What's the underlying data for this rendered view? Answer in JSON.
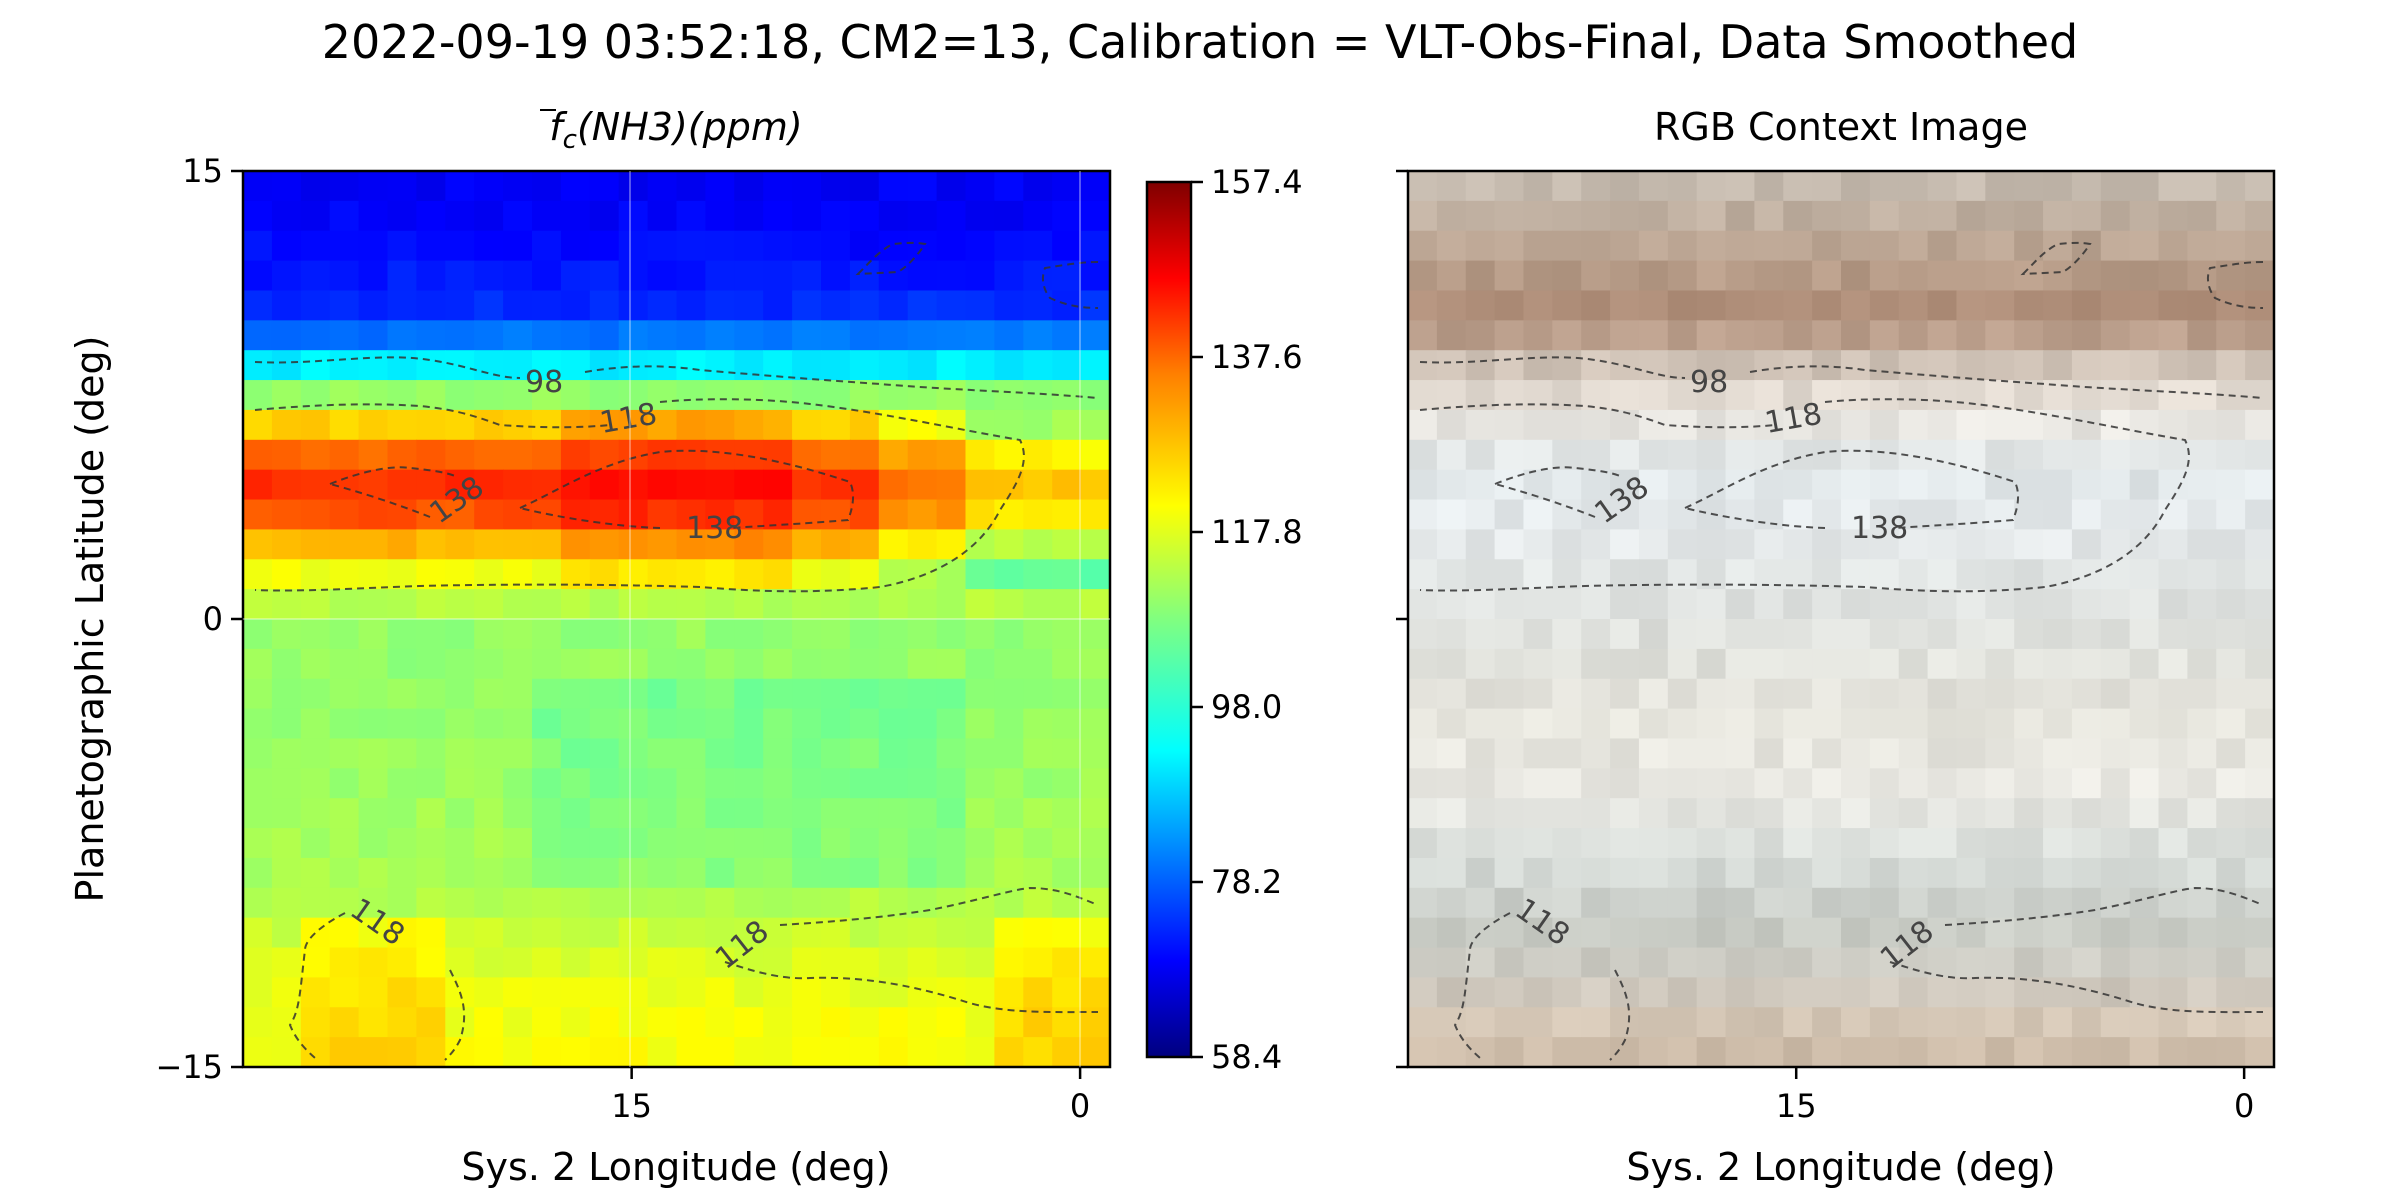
{
  "figure": {
    "title": "2022-09-19 03:52:18, CM2=13, Calibration = VLT-Obs-Final, Data Smoothed"
  },
  "chart_data": [
    {
      "type": "heatmap",
      "title_parts": {
        "f": "f",
        "sub": "c",
        "species": "(NH3)",
        "unit": "(ppm)"
      },
      "xlabel": "Sys. 2 Longitude (deg)",
      "ylabel": "Planetographic Latitude (deg)",
      "xlim": [
        28,
        -1
      ],
      "ylim": [
        -15,
        15
      ],
      "xticks": [
        15,
        0
      ],
      "xtick_labels": [
        "15",
        "0"
      ],
      "yticks": [
        15,
        0,
        -15
      ],
      "ytick_labels": [
        "15",
        "0",
        "−15"
      ],
      "grid": true,
      "colormap": "jet",
      "colorbar": {
        "min": 58.4,
        "max": 157.4,
        "ticks": [
          157.4,
          137.6,
          117.8,
          98.0,
          78.2,
          58.4
        ],
        "tick_labels": [
          "157.4",
          "137.6",
          "117.8",
          "98.0",
          "78.2",
          "58.4"
        ],
        "colors": [
          "#00007f",
          "#0000ff",
          "#0080ff",
          "#00ffff",
          "#80ff80",
          "#ffff00",
          "#ff8000",
          "#ff0000",
          "#7f0000"
        ]
      },
      "latitude_band_values": [
        {
          "lat": 14,
          "value": 70
        },
        {
          "lat": 12,
          "value": 72
        },
        {
          "lat": 10,
          "value": 76
        },
        {
          "lat": 9,
          "value": 88
        },
        {
          "lat": 8,
          "value": 100
        },
        {
          "lat": 7,
          "value": 120
        },
        {
          "lat": 6,
          "value": 130
        },
        {
          "lat": 5,
          "value": 140
        },
        {
          "lat": 4,
          "value": 141
        },
        {
          "lat": 3,
          "value": 133
        },
        {
          "lat": 2,
          "value": 122
        },
        {
          "lat": 1,
          "value": 116
        },
        {
          "lat": 0,
          "value": 110
        },
        {
          "lat": -3,
          "value": 110
        },
        {
          "lat": -6,
          "value": 111
        },
        {
          "lat": -9,
          "value": 112
        },
        {
          "lat": -11,
          "value": 116
        },
        {
          "lat": -13,
          "value": 119
        },
        {
          "lat": -15,
          "value": 120
        }
      ],
      "contours": [
        {
          "level": 98,
          "label": "98"
        },
        {
          "level": 118,
          "label": "118"
        },
        {
          "level": 138,
          "label": "138"
        }
      ]
    },
    {
      "type": "heatmap",
      "title": "RGB Context Image",
      "xlabel": "Sys. 2 Longitude (deg)",
      "xlim": [
        28,
        -1
      ],
      "ylim": [
        -15,
        15
      ],
      "xticks": [
        15,
        0
      ],
      "xtick_labels": [
        "15",
        "0"
      ],
      "latitude_band_colors": [
        {
          "lat": 15,
          "color": "#c8bfb5"
        },
        {
          "lat": 12,
          "color": "#b8a08c"
        },
        {
          "lat": 10,
          "color": "#b08c76"
        },
        {
          "lat": 8.5,
          "color": "#cfc2b6"
        },
        {
          "lat": 7,
          "color": "#ebe6df"
        },
        {
          "lat": 5,
          "color": "#dfe6e8"
        },
        {
          "lat": 3,
          "color": "#e6eaec"
        },
        {
          "lat": 0,
          "color": "#dcdfdc"
        },
        {
          "lat": -3,
          "color": "#e5e4dc"
        },
        {
          "lat": -6,
          "color": "#e8e8e2"
        },
        {
          "lat": -8,
          "color": "#d8ddda"
        },
        {
          "lat": -10,
          "color": "#c8ccc6"
        },
        {
          "lat": -12,
          "color": "#cdcac2"
        },
        {
          "lat": -13.5,
          "color": "#d5c7b6"
        },
        {
          "lat": -15,
          "color": "#c9b7a3"
        }
      ]
    }
  ]
}
